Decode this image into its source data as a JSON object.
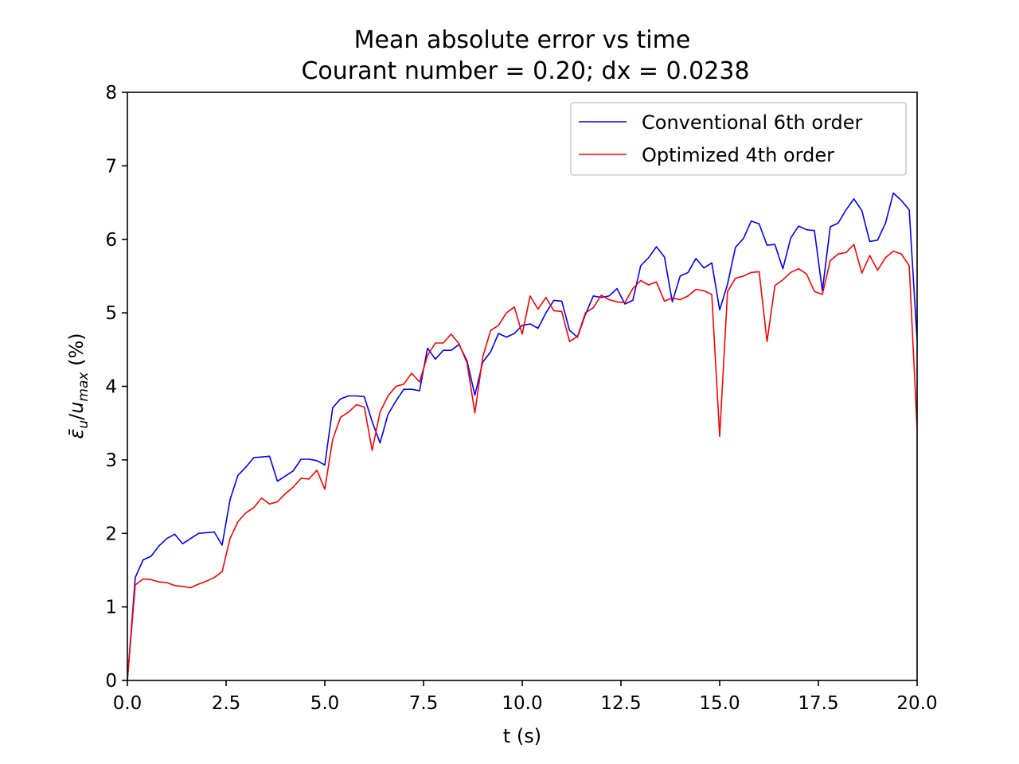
{
  "chart_data": {
    "type": "line",
    "title": "Mean absolute error vs time",
    "subtitle": "Courant number = 0.20; dx = 0.0238",
    "xlabel": "t (s)",
    "ylabel": "ε̄u/umax (%)",
    "xlim": [
      0,
      20
    ],
    "ylim": [
      0,
      8
    ],
    "xticks": [
      "0.0",
      "2.5",
      "5.0",
      "7.5",
      "10.0",
      "12.5",
      "15.0",
      "17.5",
      "20.0"
    ],
    "yticks": [
      "0",
      "1",
      "2",
      "3",
      "4",
      "5",
      "6",
      "7",
      "8"
    ],
    "grid": false,
    "legend_position": "top-right",
    "x": [
      0.0,
      0.2,
      0.4,
      0.6,
      0.8,
      1.0,
      1.2,
      1.4,
      1.6,
      1.8,
      2.0,
      2.2,
      2.4,
      2.6,
      2.8,
      3.0,
      3.2,
      3.4,
      3.6,
      3.8,
      4.0,
      4.2,
      4.4,
      4.6,
      4.8,
      5.0,
      5.2,
      5.4,
      5.6,
      5.8,
      6.0,
      6.2,
      6.4,
      6.6,
      6.8,
      7.0,
      7.2,
      7.4,
      7.6,
      7.8,
      8.0,
      8.2,
      8.4,
      8.6,
      8.8,
      9.0,
      9.2,
      9.4,
      9.6,
      9.8,
      10.0,
      10.2,
      10.4,
      10.6,
      10.8,
      11.0,
      11.2,
      11.4,
      11.6,
      11.8,
      12.0,
      12.2,
      12.4,
      12.6,
      12.8,
      13.0,
      13.2,
      13.4,
      13.6,
      13.8,
      14.0,
      14.2,
      14.4,
      14.6,
      14.8,
      15.0,
      15.2,
      15.4,
      15.6,
      15.8,
      16.0,
      16.2,
      16.4,
      16.6,
      16.8,
      17.0,
      17.2,
      17.4,
      17.6,
      17.8,
      18.0,
      18.2,
      18.4,
      18.6,
      18.8,
      19.0,
      19.2,
      19.4,
      19.6,
      19.8,
      20.0
    ],
    "series": [
      {
        "name": "Conventional 6th order",
        "color": "#0000ff",
        "values": [
          0.0,
          1.4,
          1.64,
          1.69,
          1.83,
          1.93,
          1.99,
          1.86,
          1.93,
          2.0,
          2.01,
          2.02,
          1.84,
          2.46,
          2.79,
          2.9,
          3.03,
          3.04,
          3.05,
          2.71,
          2.78,
          2.85,
          3.01,
          3.01,
          2.99,
          2.93,
          3.71,
          3.83,
          3.87,
          3.87,
          3.86,
          3.52,
          3.23,
          3.62,
          3.8,
          3.96,
          3.96,
          3.94,
          4.52,
          4.37,
          4.49,
          4.49,
          4.57,
          4.35,
          3.88,
          4.33,
          4.47,
          4.72,
          4.67,
          4.72,
          4.83,
          4.85,
          4.79,
          5.0,
          5.17,
          5.16,
          4.76,
          4.67,
          4.98,
          5.23,
          5.21,
          5.23,
          5.33,
          5.12,
          5.17,
          5.64,
          5.75,
          5.9,
          5.76,
          5.15,
          5.5,
          5.55,
          5.74,
          5.61,
          5.68,
          5.04,
          5.39,
          5.89,
          6.01,
          6.25,
          6.21,
          5.92,
          5.93,
          5.6,
          6.02,
          6.18,
          6.13,
          6.12,
          5.3,
          6.17,
          6.22,
          6.4,
          6.55,
          6.39,
          5.97,
          5.99,
          6.22,
          6.63,
          6.53,
          6.4,
          4.62
        ]
      },
      {
        "name": "Optimized 4th order",
        "color": "#ff0000",
        "values": [
          0.0,
          1.3,
          1.38,
          1.37,
          1.34,
          1.33,
          1.29,
          1.28,
          1.26,
          1.31,
          1.35,
          1.4,
          1.48,
          1.93,
          2.16,
          2.28,
          2.35,
          2.48,
          2.4,
          2.43,
          2.54,
          2.63,
          2.75,
          2.74,
          2.86,
          2.6,
          3.28,
          3.58,
          3.65,
          3.75,
          3.72,
          3.13,
          3.65,
          3.87,
          4.0,
          4.03,
          4.18,
          4.06,
          4.42,
          4.59,
          4.59,
          4.71,
          4.58,
          4.32,
          3.64,
          4.4,
          4.76,
          4.83,
          5.0,
          5.08,
          4.71,
          5.23,
          5.05,
          5.21,
          5.03,
          5.02,
          4.61,
          4.68,
          5.0,
          5.07,
          5.24,
          5.18,
          5.15,
          5.14,
          5.33,
          5.44,
          5.38,
          5.42,
          5.16,
          5.2,
          5.18,
          5.23,
          5.32,
          5.3,
          5.25,
          3.32,
          5.29,
          5.47,
          5.5,
          5.55,
          5.56,
          4.61,
          5.37,
          5.45,
          5.55,
          5.6,
          5.53,
          5.29,
          5.25,
          5.71,
          5.8,
          5.82,
          5.93,
          5.54,
          5.78,
          5.58,
          5.75,
          5.84,
          5.8,
          5.64,
          3.43
        ]
      }
    ]
  }
}
